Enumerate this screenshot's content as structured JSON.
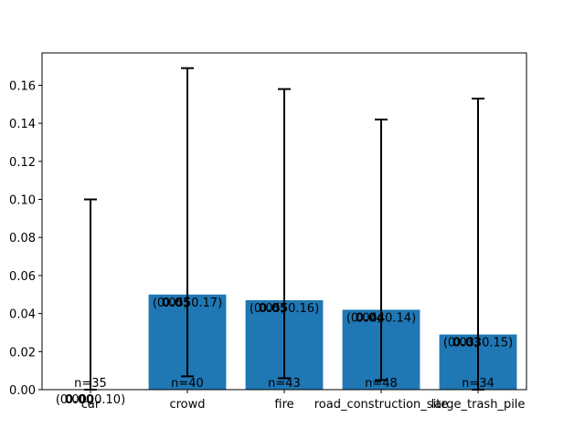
{
  "chart_data": {
    "type": "bar",
    "title": "",
    "xlabel": "",
    "ylabel": "",
    "categories": [
      "car",
      "crowd",
      "fire",
      "road_construction_site",
      "large_trash_pile"
    ],
    "values": [
      0.0,
      0.05,
      0.047,
      0.042,
      0.029
    ],
    "ci_low": [
      0.0,
      0.007,
      0.006,
      0.005,
      0.0
    ],
    "ci_high": [
      0.1,
      0.169,
      0.158,
      0.142,
      0.153
    ],
    "n": [
      35,
      40,
      43,
      48,
      34
    ],
    "value_labels": [
      "(0.00, 0.10)",
      "(0.05, 0.17)",
      "(0.05, 0.16)",
      "(0.04, 0.14)",
      "(0.03, 0.15)"
    ],
    "value_labels_bold": [
      "0.00",
      "0.05",
      "0.05",
      "0.04",
      "0.03"
    ],
    "n_labels": [
      "n=35",
      "n=40",
      "n=43",
      "n=48",
      "n=34"
    ],
    "ylim": [
      0,
      0.177
    ],
    "yticks": [
      0.0,
      0.02,
      0.04,
      0.06,
      0.08,
      0.1,
      0.12,
      0.14,
      0.16
    ],
    "ytick_labels": [
      "0.00",
      "0.02",
      "0.04",
      "0.06",
      "0.08",
      "0.10",
      "0.12",
      "0.14",
      "0.16"
    ],
    "grid": false,
    "legend": null,
    "bar_color": "#1f77b4",
    "errorbar_color": "#000000"
  }
}
